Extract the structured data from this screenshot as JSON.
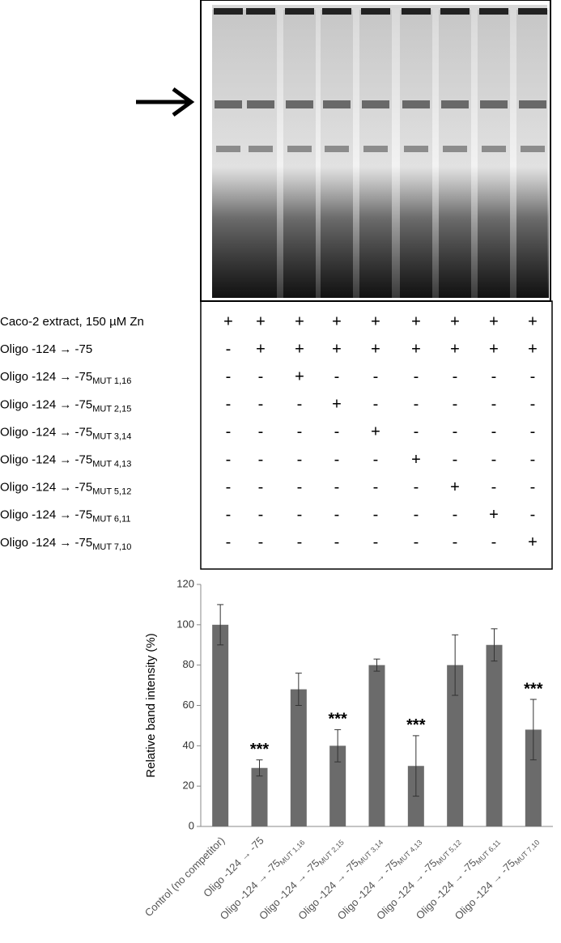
{
  "table": {
    "rows": [
      {
        "label": "Caco-2 extract, 150 µM Zn",
        "cells": [
          "+",
          "+",
          "+",
          "+",
          "+",
          "+",
          "+",
          "+",
          "+"
        ]
      },
      {
        "label": "Oligo -124 → -75",
        "cells": [
          "-",
          "+",
          "+",
          "+",
          "+",
          "+",
          "+",
          "+",
          "+"
        ]
      },
      {
        "label": "Oligo -124 → -75",
        "subscript": "MUT 1,16",
        "cells": [
          "-",
          "-",
          "+",
          "-",
          "-",
          "-",
          "-",
          "-",
          "-"
        ]
      },
      {
        "label": "Oligo -124 → -75",
        "subscript": "MUT 2,15",
        "cells": [
          "-",
          "-",
          "-",
          "+",
          "-",
          "-",
          "-",
          "-",
          "-"
        ]
      },
      {
        "label": "Oligo -124 → -75",
        "subscript": "MUT 3,14",
        "cells": [
          "-",
          "-",
          "-",
          "-",
          "+",
          "-",
          "-",
          "-",
          "-"
        ]
      },
      {
        "label": "Oligo -124 → -75",
        "subscript": "MUT 4,13",
        "cells": [
          "-",
          "-",
          "-",
          "-",
          "-",
          "+",
          "-",
          "-",
          "-"
        ]
      },
      {
        "label": "Oligo -124 → -75",
        "subscript": "MUT 5,12",
        "cells": [
          "-",
          "-",
          "-",
          "-",
          "-",
          "-",
          "+",
          "-",
          "-"
        ]
      },
      {
        "label": "Oligo -124 → -75",
        "subscript": "MUT 6,11",
        "cells": [
          "-",
          "-",
          "-",
          "-",
          "-",
          "-",
          "-",
          "+",
          "-"
        ]
      },
      {
        "label": "Oligo -124 → -75",
        "subscript": "MUT 7,10",
        "cells": [
          "-",
          "-",
          "-",
          "-",
          "-",
          "-",
          "-",
          "-",
          "+"
        ]
      }
    ]
  },
  "chart_data": {
    "type": "bar",
    "ylabel": "Relative band intensity (%)",
    "categories": [
      "Control (no competitor)",
      "Oligo -124 → -75",
      "Oligo -124 → -75",
      "Oligo -124 → -75",
      "Oligo -124 → -75",
      "Oligo -124 → -75",
      "Oligo -124 → -75",
      "Oligo -124 → -75",
      "Oligo -124 → -75"
    ],
    "category_subscripts": [
      null,
      null,
      "MUT 1,16",
      "MUT 2,15",
      "MUT 3,14",
      "MUT 4,13",
      "MUT 5,12",
      "MUT 6,11",
      "MUT 7,10"
    ],
    "values": [
      100,
      29,
      68,
      40,
      80,
      30,
      80,
      90,
      48
    ],
    "errors": [
      10,
      4,
      8,
      8,
      3,
      15,
      15,
      8,
      15
    ],
    "annotations": [
      null,
      "***",
      null,
      "***",
      null,
      "***",
      null,
      null,
      "***"
    ],
    "color": "#6b6b6b",
    "ylim": [
      0,
      120
    ],
    "yticks": [
      0,
      20,
      40,
      60,
      80,
      100,
      120
    ]
  }
}
